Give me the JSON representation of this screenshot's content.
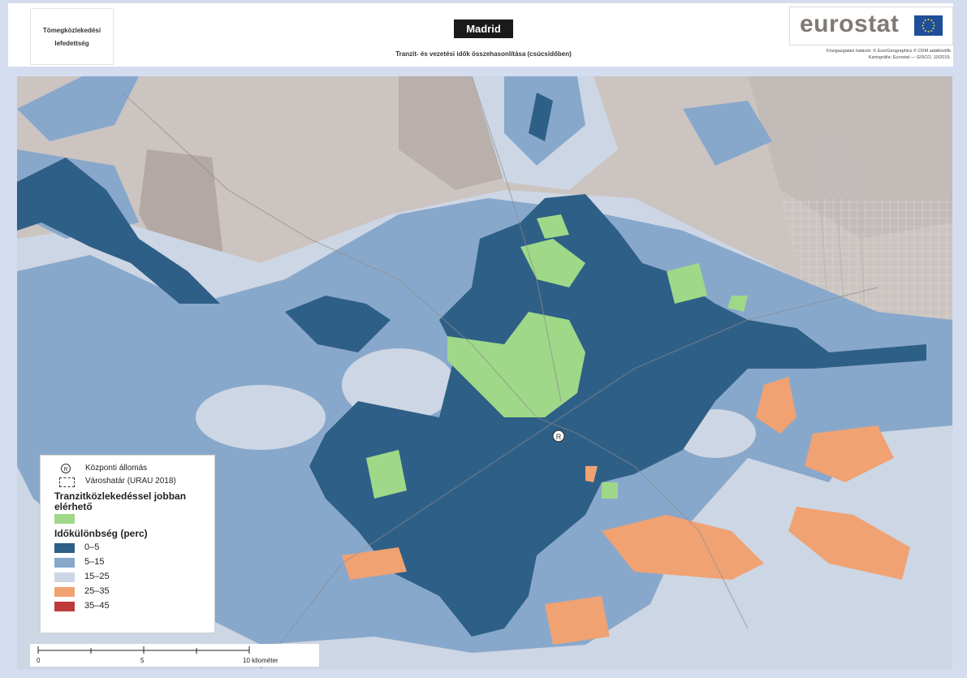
{
  "header": {
    "badge_line1": "Tömegközlekedési",
    "badge_line2": "lefedettség",
    "city": "Madrid",
    "subtitle": "Tranzit- és vezetési idők összehasonlítása (csúcsidőben)",
    "logo_text": "eurostat",
    "credit_line1": "Közigazgatási határok: © EuroGeographics © OSM adatközlők",
    "credit_line2": "Kartográfia: Eurostat — GISCO, 10/2019."
  },
  "legend": {
    "central_station": "Központi állomás",
    "city_boundary": "Városhatár (URAU 2018)",
    "transit_better_title": "Tranzitközlekedéssel jobban elérhető",
    "time_diff_title": "Időkülönbség (perc)",
    "classes": [
      {
        "label": "0–5",
        "color": "#2e5f87"
      },
      {
        "label": "5–15",
        "color": "#88a8cb"
      },
      {
        "label": "15–25",
        "color": "#cdd6e4"
      },
      {
        "label": "25–35",
        "color": "#f0a273"
      },
      {
        "label": "35–45",
        "color": "#c0393b"
      }
    ],
    "transit_better_color": "#9fd888",
    "station_icon": "rail-station-icon"
  },
  "scale_bar": {
    "ticks": [
      "0",
      "5",
      "10 kilométer"
    ]
  },
  "colors": {
    "terrain": "#ccc4c0",
    "brand_blue": "#1f4e9a",
    "flag_star": "#f4d82c"
  }
}
